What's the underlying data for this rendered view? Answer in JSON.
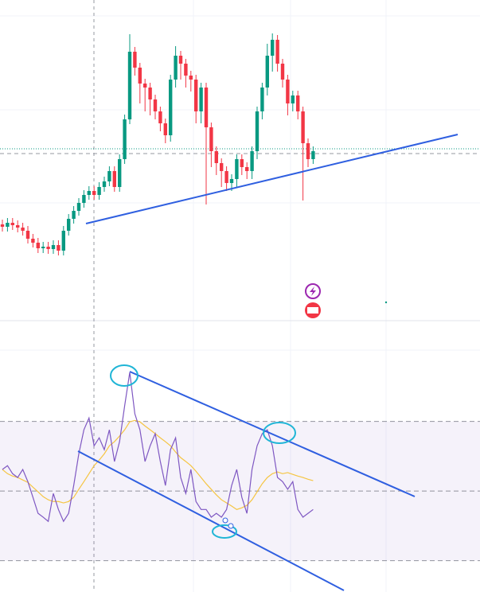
{
  "chart_data": [
    {
      "type": "candlestick",
      "up_color": "#089981",
      "down_color": "#f23645",
      "ylim": [
        0,
        400
      ],
      "open": [
        118,
        115,
        120,
        117,
        114,
        110,
        100,
        95,
        88,
        90,
        87,
        92,
        85,
        110,
        125,
        135,
        145,
        155,
        160,
        155,
        165,
        172,
        185,
        165,
        200,
        250,
        335,
        315,
        295,
        290,
        275,
        260,
        245,
        230,
        300,
        330,
        320,
        305,
        300,
        260,
        290,
        240,
        210,
        195,
        185,
        170,
        175,
        200,
        190,
        185,
        210,
        260,
        290,
        330,
        350,
        320,
        300,
        270,
        280,
        260,
        220,
        200
      ],
      "high": [
        124,
        126,
        126,
        123,
        120,
        116,
        106,
        101,
        96,
        96,
        98,
        98,
        116,
        131,
        141,
        151,
        161,
        166,
        166,
        171,
        178,
        191,
        191,
        206,
        256,
        357,
        341,
        321,
        301,
        296,
        281,
        266,
        251,
        306,
        342,
        336,
        326,
        311,
        306,
        296,
        296,
        246,
        216,
        201,
        191,
        181,
        206,
        206,
        196,
        216,
        266,
        296,
        345,
        358,
        356,
        326,
        306,
        286,
        286,
        266,
        226,
        216
      ],
      "low": [
        109,
        109,
        111,
        108,
        104,
        94,
        89,
        82,
        82,
        81,
        81,
        79,
        79,
        104,
        119,
        129,
        139,
        149,
        149,
        149,
        159,
        166,
        159,
        159,
        194,
        244,
        305,
        270,
        260,
        255,
        250,
        235,
        220,
        222,
        290,
        300,
        290,
        285,
        245,
        245,
        143,
        190,
        180,
        165,
        160,
        160,
        165,
        180,
        175,
        175,
        200,
        250,
        280,
        310,
        310,
        290,
        255,
        260,
        250,
        148,
        190,
        194
      ],
      "close": [
        115,
        120,
        117,
        114,
        110,
        100,
        95,
        88,
        90,
        87,
        92,
        85,
        110,
        125,
        135,
        145,
        155,
        160,
        155,
        165,
        172,
        185,
        165,
        200,
        250,
        335,
        315,
        295,
        290,
        275,
        260,
        245,
        230,
        300,
        330,
        320,
        305,
        300,
        260,
        290,
        240,
        210,
        195,
        185,
        170,
        175,
        200,
        190,
        185,
        210,
        260,
        290,
        330,
        350,
        320,
        300,
        270,
        280,
        260,
        220,
        200,
        210
      ]
    },
    {
      "type": "line",
      "ylim": [
        21,
        98.5
      ],
      "levels": [
        70,
        50,
        30
      ],
      "band_color": "#7e57c2",
      "series": [
        {
          "color": "#7e57c2",
          "values": [
            56.2,
            57.3,
            55.0,
            53.9,
            56.2,
            52.7,
            48.2,
            43.6,
            42.5,
            41.3,
            49.3,
            44.7,
            41.3,
            43.6,
            51.6,
            60.7,
            67.6,
            71.0,
            63.0,
            65.3,
            61.9,
            67.6,
            58.5,
            64.2,
            74.5,
            84.1,
            72.2,
            67.6,
            58.5,
            63.0,
            66.5,
            58.5,
            51.6,
            61.9,
            65.3,
            53.9,
            49.3,
            56.2,
            47.0,
            44.7,
            44.7,
            42.5,
            43.6,
            42.5,
            44.7,
            51.6,
            56.2,
            48.2,
            43.6,
            56.2,
            63.0,
            66.5,
            67.6,
            63.0,
            53.9,
            52.7,
            50.5,
            52.7,
            44.7,
            42.5,
            43.6,
            44.7
          ]
        },
        {
          "color": "#f5c542",
          "values": [
            56.2,
            55.0,
            54.3,
            53.9,
            53.2,
            52.5,
            51.1,
            49.8,
            48.4,
            47.5,
            47.0,
            47.0,
            46.6,
            47.0,
            48.2,
            50.5,
            52.7,
            55.0,
            57.3,
            58.9,
            60.7,
            63.0,
            64.2,
            65.8,
            67.6,
            69.9,
            70.3,
            69.9,
            68.7,
            67.6,
            66.5,
            65.3,
            64.2,
            63.0,
            61.2,
            59.6,
            58.5,
            57.3,
            55.7,
            53.9,
            52.1,
            50.5,
            48.9,
            47.5,
            46.6,
            45.7,
            44.7,
            45.2,
            45.9,
            47.5,
            49.8,
            52.1,
            53.9,
            55.0,
            55.5,
            55.0,
            55.3,
            54.8,
            54.3,
            53.9,
            53.4,
            53.0
          ]
        }
      ]
    }
  ]
}
